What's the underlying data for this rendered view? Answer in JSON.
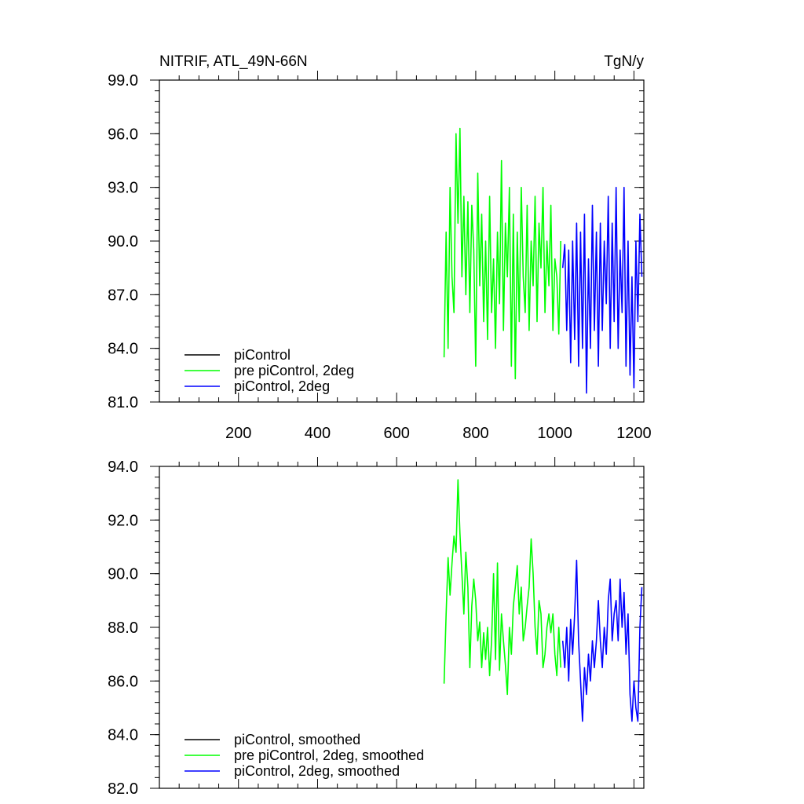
{
  "colors": {
    "piControl": "#000000",
    "pre_piControl_2deg": "#00ff00",
    "piControl_2deg": "#0000ff"
  },
  "chart_data": [
    {
      "type": "line",
      "title_left": "NITRIF, ATL_49N-66N",
      "title_right": "TgN/y",
      "xlim": [
        0,
        1225
      ],
      "ylim": [
        81.0,
        99.0
      ],
      "x_ticks": [
        200,
        400,
        600,
        800,
        1000,
        1200
      ],
      "x_tick_labels": [
        "200",
        "400",
        "600",
        "800",
        "1000",
        "1200"
      ],
      "y_ticks": [
        81.0,
        84.0,
        87.0,
        90.0,
        93.0,
        96.0,
        99.0
      ],
      "y_tick_labels": [
        "81.0",
        "84.0",
        "87.0",
        "90.0",
        "93.0",
        "96.0",
        "99.0"
      ],
      "legend_position": "bottom-left",
      "legend": [
        "piControl",
        "pre piControl, 2deg",
        "piControl, 2deg"
      ],
      "series": [
        {
          "name": "pre piControl, 2deg",
          "color_key": "pre_piControl_2deg",
          "x": [
            720,
            725,
            730,
            735,
            740,
            745,
            750,
            755,
            760,
            765,
            770,
            775,
            780,
            785,
            790,
            795,
            800,
            805,
            810,
            815,
            820,
            825,
            830,
            835,
            840,
            845,
            850,
            855,
            860,
            865,
            870,
            875,
            880,
            885,
            890,
            895,
            900,
            905,
            910,
            915,
            920,
            925,
            930,
            935,
            940,
            945,
            950,
            955,
            960,
            965,
            970,
            975,
            980,
            985,
            990,
            995,
            1000,
            1005,
            1010,
            1015
          ],
          "y": [
            83.5,
            90.5,
            84.0,
            93.0,
            88.0,
            86.0,
            96.0,
            91.0,
            96.3,
            88.0,
            92.5,
            87.0,
            92.2,
            86.0,
            92.0,
            89.5,
            83.0,
            93.8,
            87.5,
            91.5,
            85.5,
            90.0,
            84.5,
            92.5,
            86.0,
            89.0,
            84.0,
            90.5,
            86.5,
            94.5,
            85.0,
            91.0,
            88.0,
            93.0,
            83.0,
            91.5,
            82.3,
            90.5,
            85.5,
            93.0,
            88.0,
            86.0,
            92.0,
            85.0,
            90.0,
            87.5,
            92.5,
            85.5,
            91.0,
            88.5,
            93.0,
            86.0,
            90.0,
            87.5,
            92.0,
            85.0,
            89.0,
            88.0,
            84.8,
            90.0
          ]
        },
        {
          "name": "piControl, 2deg",
          "color_key": "piControl_2deg",
          "x": [
            1020,
            1025,
            1030,
            1035,
            1040,
            1045,
            1050,
            1055,
            1060,
            1065,
            1070,
            1075,
            1080,
            1085,
            1090,
            1095,
            1100,
            1105,
            1110,
            1115,
            1120,
            1125,
            1130,
            1135,
            1140,
            1145,
            1150,
            1155,
            1160,
            1165,
            1170,
            1175,
            1180,
            1185,
            1190,
            1195,
            1200,
            1205,
            1210,
            1215,
            1220
          ],
          "y": [
            88.5,
            89.8,
            85.0,
            89.5,
            83.2,
            90.0,
            84.5,
            91.0,
            83.0,
            90.5,
            84.0,
            91.5,
            81.5,
            89.0,
            84.0,
            92.0,
            85.0,
            90.5,
            83.0,
            91.0,
            85.0,
            90.0,
            86.5,
            92.5,
            84.0,
            91.0,
            85.5,
            93.0,
            84.0,
            89.5,
            86.0,
            93.0,
            83.0,
            90.0,
            82.5,
            88.0,
            81.8,
            90.0,
            85.5,
            91.5,
            88.0
          ]
        }
      ]
    },
    {
      "type": "line",
      "xlim": [
        0,
        1225
      ],
      "ylim": [
        82.0,
        94.0
      ],
      "x_ticks": [
        200,
        400,
        600,
        800,
        1000,
        1200
      ],
      "y_ticks": [
        82.0,
        84.0,
        86.0,
        88.0,
        90.0,
        92.0,
        94.0
      ],
      "y_tick_labels": [
        "82.0",
        "84.0",
        "86.0",
        "88.0",
        "90.0",
        "92.0",
        "94.0"
      ],
      "legend_position": "bottom-left",
      "legend": [
        "piControl, smoothed",
        "pre piControl, 2deg, smoothed",
        "piControl, 2deg, smoothed"
      ],
      "series": [
        {
          "name": "pre piControl, 2deg, smoothed",
          "color_key": "pre_piControl_2deg",
          "x": [
            720,
            725,
            730,
            735,
            740,
            745,
            750,
            755,
            760,
            765,
            770,
            775,
            780,
            785,
            790,
            795,
            800,
            805,
            810,
            815,
            820,
            825,
            830,
            835,
            840,
            845,
            850,
            855,
            860,
            865,
            870,
            875,
            880,
            885,
            890,
            895,
            900,
            905,
            910,
            915,
            920,
            925,
            930,
            935,
            940,
            945,
            950,
            955,
            960,
            965,
            970,
            975,
            980,
            985,
            990,
            995,
            1000,
            1005,
            1010,
            1015
          ],
          "y": [
            85.9,
            88.5,
            90.6,
            89.2,
            90.4,
            91.4,
            90.8,
            93.5,
            91.5,
            90.0,
            88.5,
            90.8,
            89.5,
            86.5,
            88.8,
            89.8,
            89.0,
            87.5,
            88.2,
            86.5,
            87.8,
            86.8,
            88.0,
            86.2,
            87.5,
            90.0,
            86.8,
            90.4,
            86.4,
            88.5,
            87.5,
            86.6,
            85.5,
            88.0,
            87.0,
            88.8,
            89.5,
            90.3,
            88.5,
            89.5,
            87.5,
            88.0,
            88.8,
            89.5,
            91.3,
            90.0,
            88.0,
            87.0,
            89.0,
            88.5,
            86.5,
            87.0,
            88.0,
            88.5,
            87.8,
            88.5,
            87.0,
            86.2,
            88.0,
            86.5
          ]
        },
        {
          "name": "piControl, 2deg, smoothed",
          "color_key": "piControl_2deg",
          "x": [
            1020,
            1025,
            1030,
            1035,
            1040,
            1045,
            1050,
            1055,
            1060,
            1065,
            1070,
            1075,
            1080,
            1085,
            1090,
            1095,
            1100,
            1105,
            1110,
            1115,
            1120,
            1125,
            1130,
            1135,
            1140,
            1145,
            1150,
            1155,
            1160,
            1165,
            1170,
            1175,
            1180,
            1185,
            1190,
            1195,
            1200,
            1205,
            1210,
            1215,
            1220
          ],
          "y": [
            87.5,
            86.5,
            88.0,
            86.0,
            88.3,
            87.0,
            88.5,
            90.5,
            87.5,
            86.0,
            84.5,
            86.5,
            85.5,
            87.0,
            86.0,
            87.5,
            86.5,
            87.5,
            89.0,
            87.5,
            86.5,
            88.0,
            87.0,
            89.0,
            89.8,
            87.5,
            88.5,
            89.0,
            87.5,
            89.8,
            88.0,
            89.3,
            87.0,
            88.5,
            85.5,
            84.5,
            86.0,
            85.0,
            84.5,
            88.0,
            89.5
          ]
        }
      ]
    }
  ]
}
